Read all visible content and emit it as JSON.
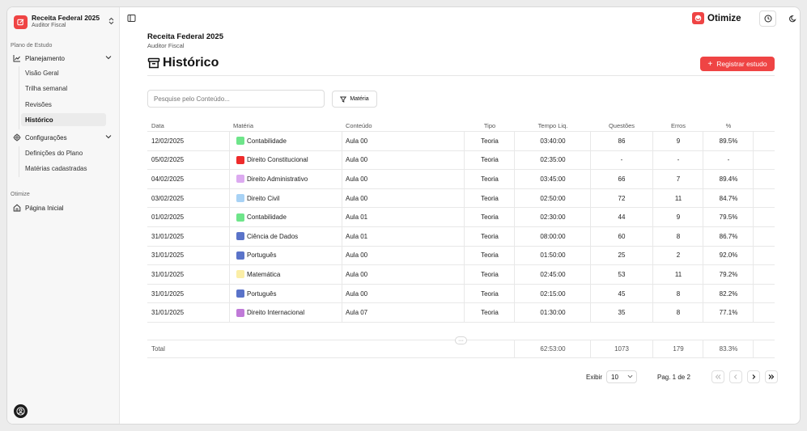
{
  "app": {
    "name": "Receita Federal 2025",
    "subtitle": "Auditor Fiscal"
  },
  "sidebar": {
    "group1_label": "Plano de Estudo",
    "planejamento": {
      "label": "Planejamento",
      "items": [
        "Visão Geral",
        "Trilha semanal",
        "Revisões",
        "Histórico"
      ]
    },
    "configuracoes": {
      "label": "Configurações",
      "items": [
        "Definições do Plano",
        "Matérias cadastradas"
      ]
    },
    "group2_label": "Otimize",
    "pagina_inicial": "Página Inicial"
  },
  "topbar": {
    "logo_text": "Otimize"
  },
  "header": {
    "title": "Receita Federal 2025",
    "subtitle": "Auditor Fiscal",
    "page_title": "Histórico",
    "cta_label": "Registrar estudo"
  },
  "filters": {
    "search_placeholder": "Pesquise pelo Conteúdo...",
    "filter_label": "Matéria"
  },
  "table": {
    "columns": [
      "Data",
      "Matéria",
      "Conteúdo",
      "Tipo",
      "Tempo Liq.",
      "Questões",
      "Erros",
      "%"
    ],
    "rows": [
      {
        "data": "12/02/2025",
        "materia": "Contabilidade",
        "color": "#6ee58a",
        "conteudo": "Aula 00",
        "tipo": "Teoria",
        "tempo": "03:40:00",
        "questoes": "86",
        "erros": "9",
        "pct": "89.5%"
      },
      {
        "data": "05/02/2025",
        "materia": "Direito Constitucional",
        "color": "#ee2b2b",
        "conteudo": "Aula 00",
        "tipo": "Teoria",
        "tempo": "02:35:00",
        "questoes": "-",
        "erros": "-",
        "pct": "-"
      },
      {
        "data": "04/02/2025",
        "materia": "Direito Administrativo",
        "color": "#dcaaf0",
        "conteudo": "Aula 00",
        "tipo": "Teoria",
        "tempo": "03:45:00",
        "questoes": "66",
        "erros": "7",
        "pct": "89.4%"
      },
      {
        "data": "03/02/2025",
        "materia": "Direito Civil",
        "color": "#a8d2f5",
        "conteudo": "Aula 00",
        "tipo": "Teoria",
        "tempo": "02:50:00",
        "questoes": "72",
        "erros": "11",
        "pct": "84.7%"
      },
      {
        "data": "01/02/2025",
        "materia": "Contabilidade",
        "color": "#6ee58a",
        "conteudo": "Aula 01",
        "tipo": "Teoria",
        "tempo": "02:30:00",
        "questoes": "44",
        "erros": "9",
        "pct": "79.5%"
      },
      {
        "data": "31/01/2025",
        "materia": "Ciência de Dados",
        "color": "#5a73c9",
        "conteudo": "Aula 01",
        "tipo": "Teoria",
        "tempo": "08:00:00",
        "questoes": "60",
        "erros": "8",
        "pct": "86.7%"
      },
      {
        "data": "31/01/2025",
        "materia": "Português",
        "color": "#5a73c9",
        "conteudo": "Aula 00",
        "tipo": "Teoria",
        "tempo": "01:50:00",
        "questoes": "25",
        "erros": "2",
        "pct": "92.0%"
      },
      {
        "data": "31/01/2025",
        "materia": "Matemática",
        "color": "#fbeea6",
        "conteudo": "Aula 00",
        "tipo": "Teoria",
        "tempo": "02:45:00",
        "questoes": "53",
        "erros": "11",
        "pct": "79.2%"
      },
      {
        "data": "31/01/2025",
        "materia": "Português",
        "color": "#5a73c9",
        "conteudo": "Aula 00",
        "tipo": "Teoria",
        "tempo": "02:15:00",
        "questoes": "45",
        "erros": "8",
        "pct": "82.2%"
      },
      {
        "data": "31/01/2025",
        "materia": "Direito Internacional",
        "color": "#c07ad8",
        "conteudo": "Aula 07",
        "tipo": "Teoria",
        "tempo": "01:30:00",
        "questoes": "35",
        "erros": "8",
        "pct": "77.1%"
      }
    ],
    "more_label": "···",
    "total": {
      "label": "Total",
      "tempo": "62:53:00",
      "questoes": "1073",
      "erros": "179",
      "pct": "83.3%"
    }
  },
  "pagination": {
    "show_label": "Exibir",
    "page_size": "10",
    "page_info": "Pag. 1 de 2"
  },
  "colors": {
    "accent": "#ef4444"
  }
}
